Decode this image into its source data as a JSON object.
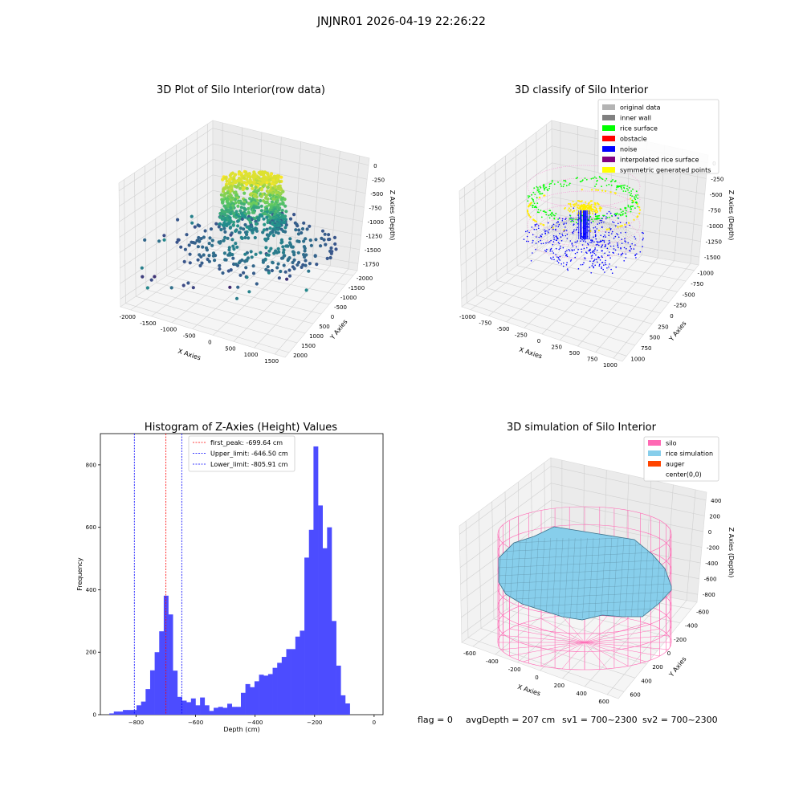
{
  "figure_title": "JNJNR01 2026-04-19 22:26:22",
  "footer": {
    "flag": "flag = 0",
    "avg_depth": "avgDepth = 207 cm",
    "sv1": "sv1 = 700~2300",
    "sv2": "sv2 = 700~2300"
  },
  "chart_data": [
    {
      "type": "scatter",
      "title": "3D Plot of Silo Interior(row data)",
      "xlabel": "X Axies",
      "ylabel": "Y Axies",
      "zlabel": "Z Axies (Depth)",
      "x_ticks": [
        "-2000",
        "-1500",
        "-1000",
        "-500",
        "0",
        "500",
        "1000",
        "1500"
      ],
      "y_ticks": [
        "-2000",
        "-1500",
        "-1000",
        "-500",
        "0",
        "500",
        "1000",
        "1500",
        "2000"
      ],
      "z_ticks": [
        "0",
        "-250",
        "-500",
        "-750",
        "-1000",
        "-1250",
        "-1500",
        "-1750"
      ],
      "zlim": [
        -1750,
        0
      ],
      "colormap": "viridis"
    },
    {
      "type": "scatter",
      "title": "3D classify of Silo Interior",
      "xlabel": "X Axies",
      "ylabel": "Y Axies",
      "zlabel": "Z Axies (Depth)",
      "x_ticks": [
        "-1000",
        "-750",
        "-500",
        "-250",
        "0",
        "250",
        "500",
        "750",
        "1000"
      ],
      "y_ticks": [
        "-1000",
        "-750",
        "-500",
        "-250",
        "0",
        "250",
        "500",
        "750",
        "1000"
      ],
      "z_ticks": [
        "0",
        "-250",
        "-500",
        "-750",
        "-1000",
        "-1250",
        "-1500"
      ],
      "legend_position": "upper-right",
      "legend": [
        {
          "label": "original data",
          "color": "#b4b4b4"
        },
        {
          "label": "inner wall",
          "color": "#808080"
        },
        {
          "label": "rice surface",
          "color": "#00ff00"
        },
        {
          "label": "obstacle",
          "color": "#ff0000"
        },
        {
          "label": "noise",
          "color": "#0000ff"
        },
        {
          "label": "interpolated rice surface",
          "color": "#800080"
        },
        {
          "label": "symmetric generated points",
          "color": "#ffff00"
        }
      ]
    },
    {
      "type": "bar",
      "title": "Histogram of Z-Axies (Height) Values",
      "xlabel": "Depth (cm)",
      "ylabel": "Frequency",
      "xlim": [
        -920,
        30
      ],
      "ylim": [
        0,
        900
      ],
      "x_ticks": [
        -800,
        -600,
        -400,
        -200,
        0
      ],
      "y_ticks": [
        0,
        200,
        400,
        600,
        800
      ],
      "bar_color": "#4c4cff",
      "bin_width": 15.25,
      "bin_start": -890,
      "values": [
        4,
        10,
        10,
        15,
        15,
        15,
        30,
        42,
        82,
        142,
        200,
        267,
        381,
        321,
        141,
        57,
        45,
        40,
        52,
        30,
        55,
        30,
        12,
        22,
        25,
        22,
        35,
        25,
        25,
        70,
        98,
        88,
        107,
        128,
        125,
        130,
        150,
        166,
        185,
        210,
        210,
        250,
        269,
        503,
        592,
        859,
        670,
        533,
        600,
        300,
        157,
        62,
        36
      ],
      "vlines": [
        {
          "label": "first_peak: -699.64 cm",
          "x": -699.64,
          "color": "#ff0000"
        },
        {
          "label": "Upper_limit: -646.50 cm",
          "x": -646.5,
          "color": "#0000ff"
        },
        {
          "label": "Lower_limit: -805.91 cm",
          "x": -805.91,
          "color": "#0000ff"
        }
      ],
      "legend_position": "upper-left"
    },
    {
      "type": "area",
      "title": "3D simulation of Silo Interior",
      "xlabel": "X Axies",
      "ylabel": "Y Axies",
      "zlabel": "Z Axies (Depth)",
      "x_ticks": [
        "-600",
        "-400",
        "-200",
        "0",
        "200",
        "400",
        "600"
      ],
      "y_ticks": [
        "-600",
        "-400",
        "-200",
        "0",
        "200",
        "400",
        "600"
      ],
      "z_ticks": [
        "400",
        "200",
        "0",
        "-200",
        "-400",
        "-600",
        "-800"
      ],
      "legend_position": "upper-right",
      "legend": [
        {
          "label": "silo",
          "color": "#ff69b4"
        },
        {
          "label": "rice simulation",
          "color": "#87ceeb"
        },
        {
          "label": "auger",
          "color": "#ff4500"
        },
        {
          "label": "center(0,0)",
          "color": "#ffffff"
        }
      ]
    }
  ]
}
